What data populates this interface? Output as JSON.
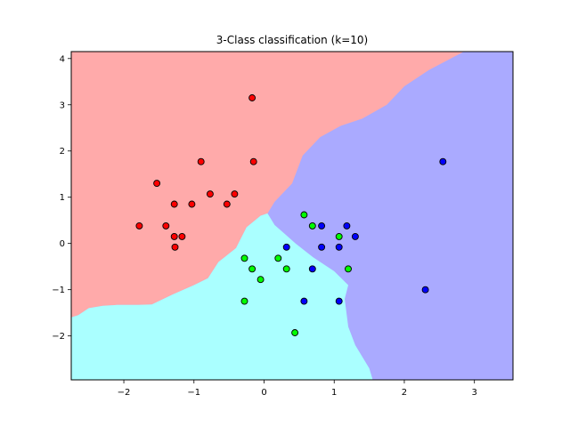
{
  "chart_data": {
    "type": "scatter",
    "title": "3-Class classification (k=10)",
    "xlabel": "",
    "ylabel": "",
    "xlim": [
      -2.75,
      3.55
    ],
    "ylim": [
      -2.95,
      4.15
    ],
    "xticks": [
      -2,
      -1,
      0,
      1,
      2,
      3
    ],
    "yticks": [
      -2,
      -1,
      0,
      1,
      2,
      3,
      4
    ],
    "grid": false,
    "colors": {
      "region_red": "#ffaaaa",
      "region_cyan": "#aaffff",
      "region_blue": "#aaaaff",
      "point_red": "#ff0000",
      "point_green": "#00ff00",
      "point_blue": "#0000ff",
      "point_edge": "#000000"
    },
    "decision_regions": [
      {
        "class": "red",
        "boundary": [
          [
            -2.75,
            -1.6
          ],
          [
            -2.65,
            -1.55
          ],
          [
            -2.5,
            -1.4
          ],
          [
            -2.3,
            -1.35
          ],
          [
            -2.1,
            -1.33
          ],
          [
            -1.8,
            -1.33
          ],
          [
            -1.6,
            -1.32
          ],
          [
            -1.3,
            -1.1
          ],
          [
            -1.0,
            -0.9
          ],
          [
            -0.8,
            -0.75
          ],
          [
            -0.65,
            -0.4
          ],
          [
            -0.4,
            -0.1
          ],
          [
            -0.25,
            0.35
          ],
          [
            -0.05,
            0.6
          ],
          [
            0.05,
            0.65
          ],
          [
            0.15,
            0.9
          ],
          [
            0.4,
            1.3
          ],
          [
            0.55,
            1.9
          ],
          [
            0.8,
            2.3
          ],
          [
            1.1,
            2.55
          ],
          [
            1.4,
            2.7
          ],
          [
            1.75,
            3.0
          ],
          [
            2.0,
            3.4
          ],
          [
            2.35,
            3.75
          ],
          [
            2.85,
            4.15
          ],
          [
            -2.75,
            4.15
          ]
        ]
      },
      {
        "class": "cyan",
        "boundary": [
          [
            -2.75,
            -1.6
          ],
          [
            -2.65,
            -1.55
          ],
          [
            -2.5,
            -1.4
          ],
          [
            -2.3,
            -1.35
          ],
          [
            -2.1,
            -1.33
          ],
          [
            -1.8,
            -1.33
          ],
          [
            -1.6,
            -1.32
          ],
          [
            -1.3,
            -1.1
          ],
          [
            -1.0,
            -0.9
          ],
          [
            -0.8,
            -0.75
          ],
          [
            -0.65,
            -0.4
          ],
          [
            -0.4,
            -0.1
          ],
          [
            -0.25,
            0.35
          ],
          [
            -0.05,
            0.6
          ],
          [
            0.05,
            0.65
          ],
          [
            0.15,
            0.4
          ],
          [
            0.3,
            0.2
          ],
          [
            0.45,
            0.0
          ],
          [
            0.7,
            -0.3
          ],
          [
            1.0,
            -0.6
          ],
          [
            1.2,
            -0.9
          ],
          [
            1.15,
            -1.2
          ],
          [
            1.2,
            -1.8
          ],
          [
            1.3,
            -2.2
          ],
          [
            1.5,
            -2.7
          ],
          [
            1.55,
            -2.95
          ],
          [
            -2.75,
            -2.95
          ]
        ]
      }
    ],
    "series": [
      {
        "name": "red",
        "color": "#ff0000",
        "x": [
          -0.17,
          -0.9,
          -0.15,
          -1.53,
          -0.77,
          -0.42,
          -1.28,
          -1.03,
          -0.53,
          -1.78,
          -1.4,
          -1.28,
          -1.17,
          -1.27
        ],
        "y": [
          3.15,
          1.77,
          1.77,
          1.3,
          1.07,
          1.07,
          0.85,
          0.85,
          0.85,
          0.38,
          0.38,
          0.15,
          0.15,
          -0.08
        ]
      },
      {
        "name": "green",
        "color": "#00ff00",
        "x": [
          0.57,
          0.69,
          1.07,
          -0.28,
          0.2,
          -0.17,
          0.32,
          1.2,
          -0.05,
          -0.28,
          0.44
        ],
        "y": [
          0.62,
          0.38,
          0.15,
          -0.32,
          -0.32,
          -0.55,
          -0.55,
          -0.55,
          -0.78,
          -1.25,
          -1.93
        ]
      },
      {
        "name": "blue",
        "color": "#0000ff",
        "x": [
          2.55,
          0.82,
          1.18,
          1.3,
          0.32,
          0.82,
          1.07,
          0.69,
          2.3,
          0.57,
          1.07
        ],
        "y": [
          1.77,
          0.38,
          0.38,
          0.15,
          -0.08,
          -0.08,
          -0.08,
          -0.55,
          -1.0,
          -1.25,
          -1.25
        ]
      }
    ]
  }
}
